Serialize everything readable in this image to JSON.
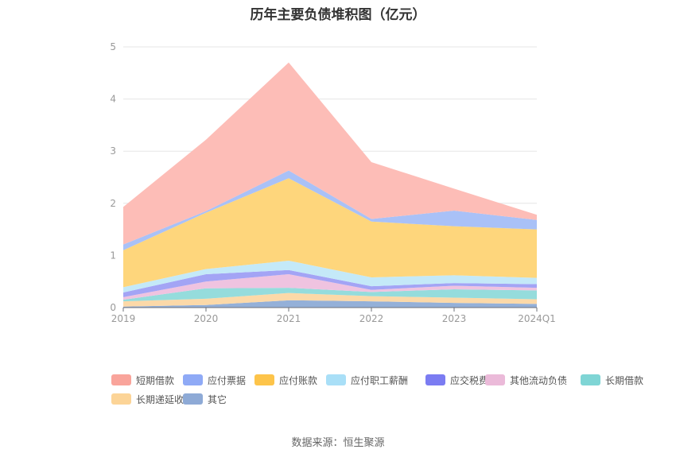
{
  "title": "历年主要负债堆积图（亿元）",
  "source": "数据来源：恒生聚源",
  "chart_data": {
    "type": "area",
    "stacked": true,
    "x": [
      "2019",
      "2020",
      "2021",
      "2022",
      "2023",
      "2024Q1"
    ],
    "ylim": [
      0,
      5
    ],
    "yticks": [
      0,
      1,
      2,
      3,
      4,
      5
    ],
    "grid": true,
    "legend_position": "bottom",
    "series": [
      {
        "name": "其它",
        "color": "#94b0d8",
        "values": [
          0.02,
          0.05,
          0.14,
          0.12,
          0.09,
          0.07
        ]
      },
      {
        "name": "长期递延收益",
        "color": "#fcd9a8",
        "values": [
          0.1,
          0.12,
          0.14,
          0.1,
          0.1,
          0.09
        ]
      },
      {
        "name": "长期借款",
        "color": "#95dcdc",
        "values": [
          0.03,
          0.2,
          0.1,
          0.08,
          0.16,
          0.17
        ]
      },
      {
        "name": "其他流动负债",
        "color": "#efc3e0",
        "values": [
          0.05,
          0.13,
          0.26,
          0.04,
          0.07,
          0.05
        ]
      },
      {
        "name": "应交税费",
        "color": "#a3a4f5",
        "values": [
          0.09,
          0.14,
          0.08,
          0.07,
          0.05,
          0.07
        ]
      },
      {
        "name": "应付职工薪酬",
        "color": "#c4e9f8",
        "values": [
          0.1,
          0.1,
          0.18,
          0.17,
          0.15,
          0.12
        ]
      },
      {
        "name": "应付账款",
        "color": "#fed67c",
        "values": [
          0.71,
          1.08,
          1.58,
          1.07,
          0.94,
          0.93
        ]
      },
      {
        "name": "应付票据",
        "color": "#a9c1f7",
        "values": [
          0.11,
          0.03,
          0.15,
          0.05,
          0.3,
          0.18
        ]
      },
      {
        "name": "短期借款",
        "color": "#fdbdb7",
        "values": [
          0.72,
          1.37,
          2.07,
          1.09,
          0.42,
          0.1
        ]
      }
    ],
    "legend": [
      {
        "name": "短期借款",
        "color": "#f9a49b"
      },
      {
        "name": "应付票据",
        "color": "#8faaf6"
      },
      {
        "name": "应付账款",
        "color": "#fdc44a"
      },
      {
        "name": "应付职工薪酬",
        "color": "#a9dff7"
      },
      {
        "name": "应交税费",
        "color": "#7b7cf2"
      },
      {
        "name": "其他流动负债",
        "color": "#ebbad9"
      },
      {
        "name": "长期借款",
        "color": "#7fd5d5"
      },
      {
        "name": "长期递延收益",
        "color": "#fcd497"
      },
      {
        "name": "其它",
        "color": "#8eaad6"
      }
    ]
  }
}
